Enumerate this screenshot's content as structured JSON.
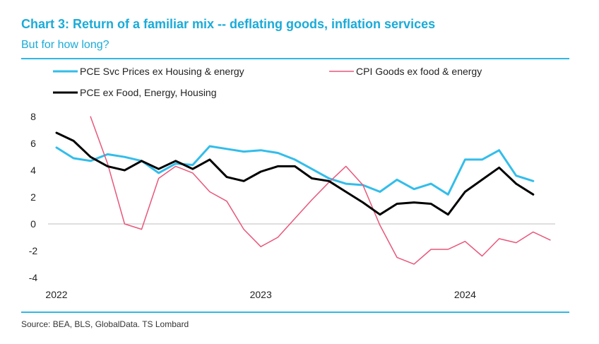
{
  "title": "Chart 3: Return of a familiar mix -- deflating goods, inflation services",
  "subtitle": "But for how long?",
  "source": "Source: BEA, BLS, GlobalData. TS Lombard",
  "chart_data": {
    "type": "line",
    "x_start": "2022-01",
    "x_ticks": [
      "2022",
      "2023",
      "2024"
    ],
    "yticks": [
      "8",
      "6",
      "4",
      "2",
      "0",
      "-2",
      "-4"
    ],
    "ylim": [
      -4,
      8
    ],
    "grid": false,
    "legend_position": "top",
    "series": [
      {
        "name": "PCE Svc Prices ex Housing & energy",
        "color": "#33bdea",
        "width": 3,
        "values": [
          5.7,
          4.9,
          4.7,
          5.2,
          5.0,
          4.7,
          3.8,
          4.5,
          4.4,
          5.8,
          5.6,
          5.4,
          5.5,
          5.3,
          4.8,
          4.1,
          3.4,
          3.0,
          2.9,
          2.4,
          3.3,
          2.6,
          3.0,
          2.2,
          4.8,
          4.8,
          5.5,
          3.6,
          3.2
        ]
      },
      {
        "name": "CPI Goods ex food & energy",
        "color": "#e8577a",
        "width": 1.5,
        "values": [
          null,
          null,
          8.0,
          4.5,
          0.0,
          -0.4,
          3.4,
          4.3,
          3.8,
          2.4,
          1.7,
          -0.4,
          -1.7,
          -1.0,
          0.4,
          1.8,
          3.1,
          4.3,
          2.9,
          -0.1,
          -2.5,
          -3.0,
          -1.9,
          -1.9,
          -1.3,
          -2.4,
          -1.1,
          -1.4,
          -0.6,
          -1.2
        ]
      },
      {
        "name": "PCE ex Food, Energy, Housing",
        "color": "#000000",
        "width": 3,
        "values": [
          6.8,
          6.2,
          5.0,
          4.3,
          4.0,
          4.7,
          4.1,
          4.7,
          4.1,
          4.8,
          3.5,
          3.2,
          3.9,
          4.3,
          4.3,
          3.4,
          3.2,
          2.4,
          1.6,
          0.7,
          1.5,
          1.6,
          1.5,
          0.7,
          2.4,
          3.3,
          4.2,
          3.0,
          2.2
        ]
      }
    ]
  }
}
